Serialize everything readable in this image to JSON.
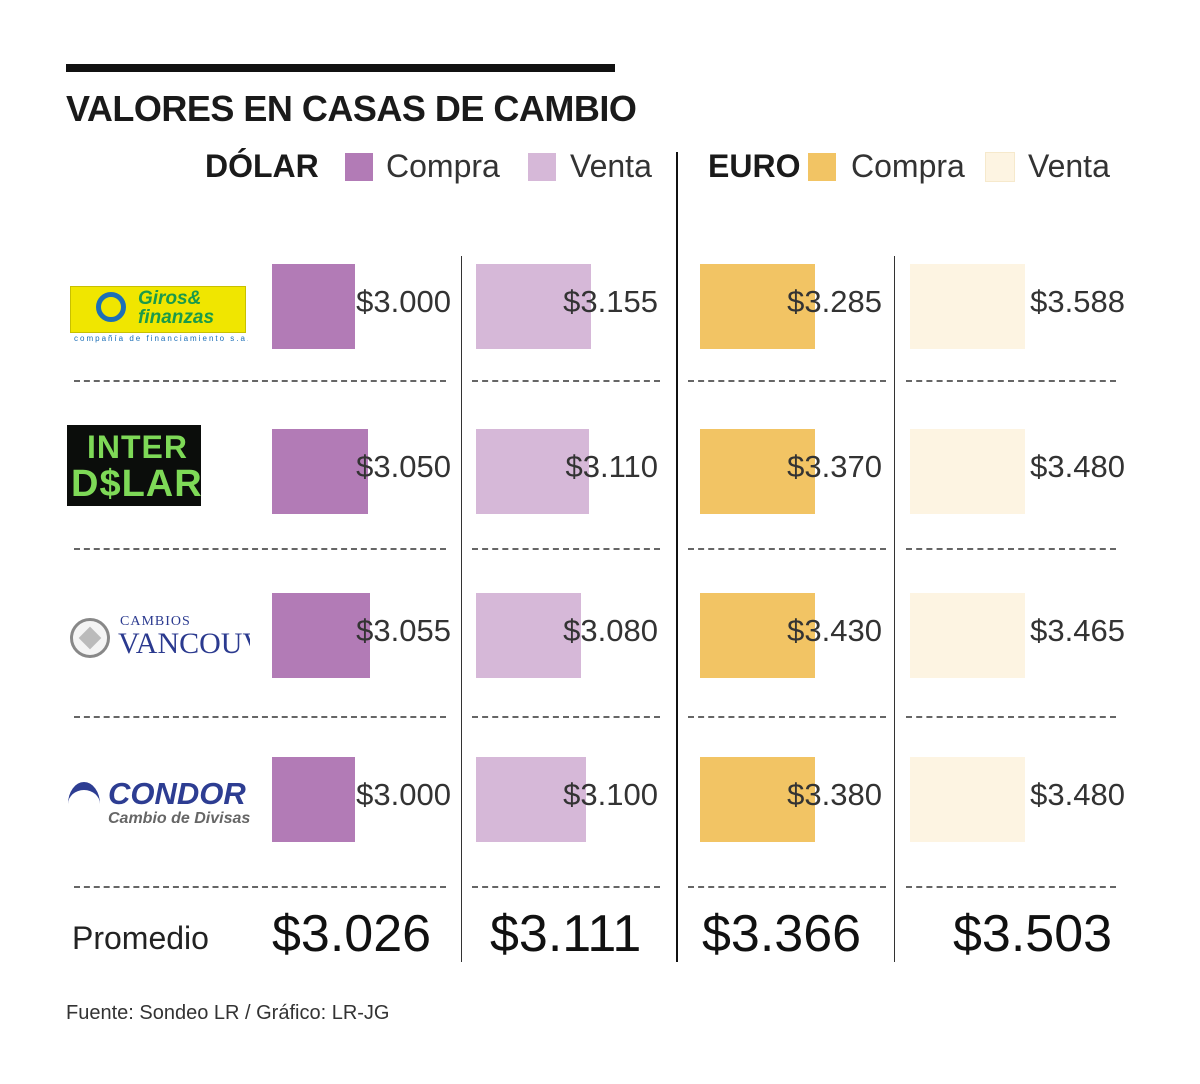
{
  "title": "VALORES EN CASAS DE CAMBIO",
  "legend": {
    "dolar_label": "DÓLAR",
    "euro_label": "EURO",
    "compra": "Compra",
    "venta": "Venta"
  },
  "colors": {
    "dolar_compra": "#b27bb6",
    "dolar_venta": "#d6b8d8",
    "euro_compra": "#f2c464",
    "euro_venta": "#fdf4e2"
  },
  "logos": {
    "giros_name_1": "Giros&",
    "giros_name_2": "finanzas",
    "giros_sub": "compañía de financiamiento s.a.",
    "inter_1": "INTER",
    "inter_2": "D$LAR",
    "vanc_1": "CAMBIOS",
    "vanc_2": "VANCOUVER",
    "condor_1": "CONDOR",
    "condor_2": "Cambio de Divisas"
  },
  "chart_data": {
    "type": "bar",
    "categories": [
      "Giros & Finanzas",
      "Inter Dólar",
      "Cambios Vancouver",
      "Condor Cambio de Divisas"
    ],
    "series": [
      {
        "name": "DÓLAR Compra",
        "values": [
          3000,
          3050,
          3055,
          3000
        ],
        "labels": [
          "$3.000",
          "$3.050",
          "$3.055",
          "$3.000"
        ]
      },
      {
        "name": "DÓLAR Venta",
        "values": [
          3155,
          3110,
          3080,
          3100
        ],
        "labels": [
          "$3.155",
          "$3.110",
          "$3.080",
          "$3.100"
        ]
      },
      {
        "name": "EURO Compra",
        "values": [
          3285,
          3370,
          3430,
          3380
        ],
        "labels": [
          "$3.285",
          "$3.370",
          "$3.430",
          "$3.380"
        ]
      },
      {
        "name": "EURO Venta",
        "values": [
          3588,
          3480,
          3465,
          3480
        ],
        "labels": [
          "$3.588",
          "$3.480",
          "$3.465",
          "$3.480"
        ]
      }
    ],
    "averages": {
      "label": "Promedio",
      "values": [
        "$3.026",
        "$3.111",
        "$3.366",
        "$3.503"
      ]
    }
  },
  "source": "Fuente: Sondeo LR / Gráfico: LR-JG"
}
